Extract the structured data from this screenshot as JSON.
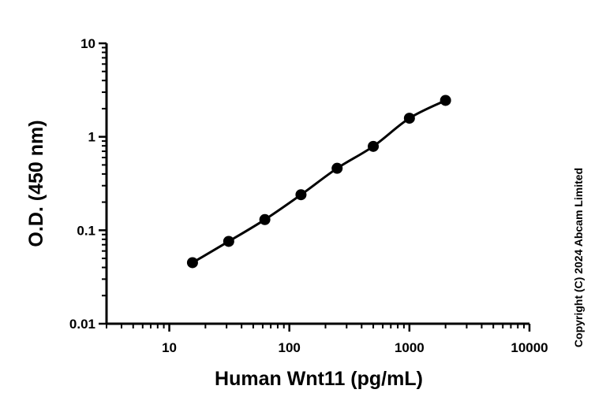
{
  "chart_data": {
    "type": "scatter",
    "title": "",
    "xlabel": "Human Wnt11 (pg/mL)",
    "ylabel": "O.D. (450 nm)",
    "x_scale": "log",
    "y_scale": "log",
    "xlim": [
      3,
      10000
    ],
    "ylim": [
      0.01,
      10
    ],
    "x_tick_labels": [
      "10",
      "100",
      "1000",
      "10000"
    ],
    "y_tick_labels": [
      "0.01",
      "0.1",
      "1",
      "10"
    ],
    "grid": false,
    "legend": "none",
    "fit_line": true,
    "series": [
      {
        "x": [
          15.6,
          31.25,
          62.5,
          125,
          250,
          500,
          1000,
          2000
        ],
        "y": [
          0.045,
          0.076,
          0.13,
          0.24,
          0.46,
          0.79,
          1.58,
          2.45
        ]
      }
    ],
    "marker_color": "#000000",
    "line_color": "#000000"
  },
  "copyright": "Copyright (C) 2024 Abcam Limited"
}
